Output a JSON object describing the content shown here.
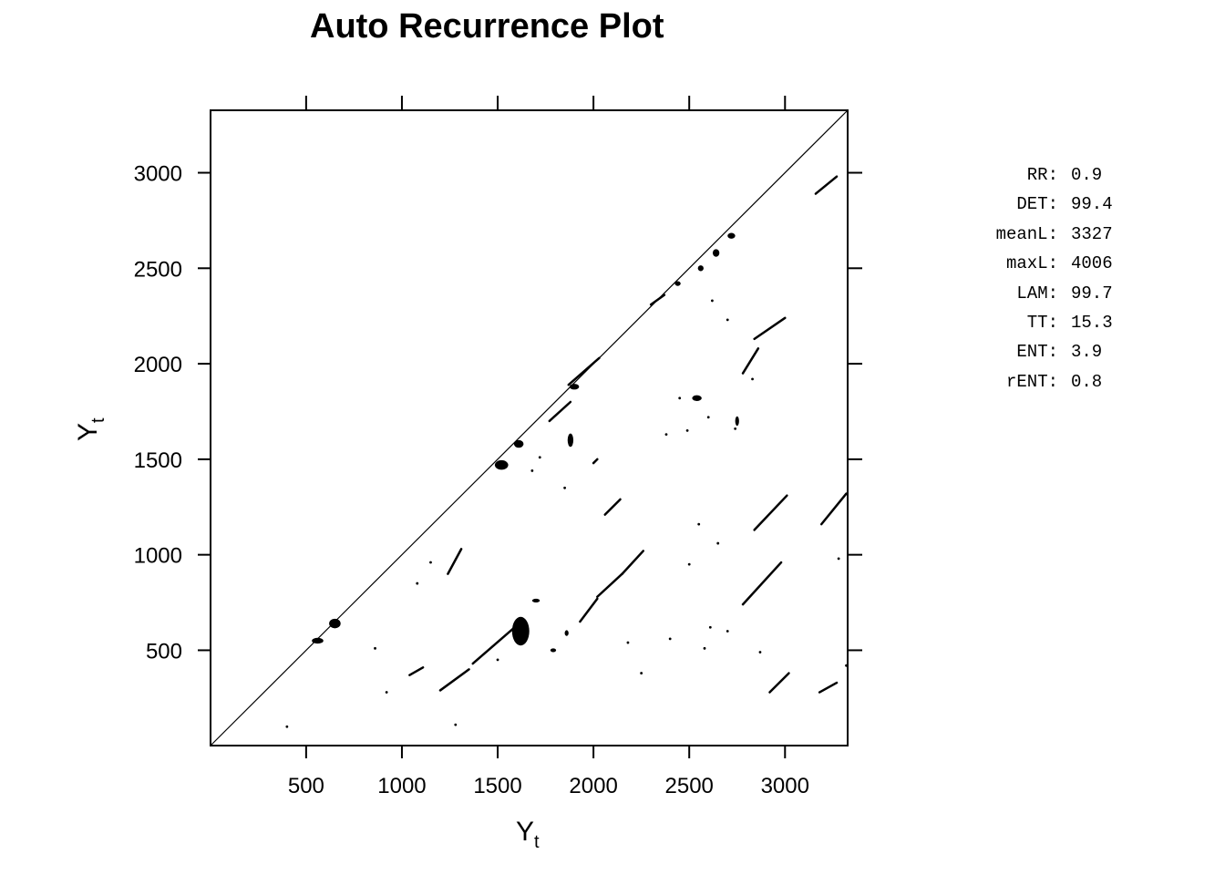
{
  "chart_data": {
    "type": "scatter",
    "title": "Auto Recurrence Plot",
    "xlabel": "Y",
    "xlabel_sub": "t",
    "ylabel": "Y",
    "ylabel_sub": "t",
    "xlim": [
      1,
      3327
    ],
    "ylim": [
      1,
      3327
    ],
    "x_ticks": [
      500,
      1000,
      1500,
      2000,
      2500,
      3000
    ],
    "y_ticks": [
      500,
      1000,
      1500,
      2000,
      2500,
      3000
    ],
    "grid": false,
    "diagonal": {
      "from": [
        1,
        1
      ],
      "to": [
        3327,
        3327
      ]
    },
    "blobs": [
      {
        "x": 560,
        "y": 550,
        "w": 60,
        "h": 30
      },
      {
        "x": 650,
        "y": 640,
        "w": 60,
        "h": 50
      },
      {
        "x": 1520,
        "y": 1470,
        "w": 70,
        "h": 50
      },
      {
        "x": 1610,
        "y": 1580,
        "w": 50,
        "h": 40
      },
      {
        "x": 1900,
        "y": 1880,
        "w": 50,
        "h": 30
      },
      {
        "x": 2440,
        "y": 2420,
        "w": 30,
        "h": 25
      },
      {
        "x": 2560,
        "y": 2500,
        "w": 30,
        "h": 30
      },
      {
        "x": 2640,
        "y": 2580,
        "w": 35,
        "h": 40
      },
      {
        "x": 2720,
        "y": 2670,
        "w": 40,
        "h": 30
      },
      {
        "x": 1620,
        "y": 600,
        "w": 90,
        "h": 150
      },
      {
        "x": 1700,
        "y": 760,
        "w": 40,
        "h": 20
      },
      {
        "x": 1880,
        "y": 1600,
        "w": 30,
        "h": 70
      },
      {
        "x": 2540,
        "y": 1820,
        "w": 50,
        "h": 30
      },
      {
        "x": 2750,
        "y": 1700,
        "w": 20,
        "h": 50
      },
      {
        "x": 1790,
        "y": 500,
        "w": 30,
        "h": 20
      },
      {
        "x": 1860,
        "y": 590,
        "w": 20,
        "h": 30
      }
    ],
    "segments": [
      {
        "x0": 1370,
        "y0": 430,
        "x1": 1600,
        "y1": 630
      },
      {
        "x0": 1200,
        "y0": 290,
        "x1": 1350,
        "y1": 400
      },
      {
        "x0": 1930,
        "y0": 650,
        "x1": 2020,
        "y1": 770
      },
      {
        "x0": 2020,
        "y0": 780,
        "x1": 2150,
        "y1": 900
      },
      {
        "x0": 2150,
        "y0": 900,
        "x1": 2260,
        "y1": 1020
      },
      {
        "x0": 1240,
        "y0": 900,
        "x1": 1310,
        "y1": 1030
      },
      {
        "x0": 2780,
        "y0": 740,
        "x1": 2980,
        "y1": 960
      },
      {
        "x0": 2840,
        "y0": 1130,
        "x1": 3010,
        "y1": 1310
      },
      {
        "x0": 3190,
        "y0": 1160,
        "x1": 3320,
        "y1": 1320
      },
      {
        "x0": 2920,
        "y0": 280,
        "x1": 3020,
        "y1": 380
      },
      {
        "x0": 3180,
        "y0": 280,
        "x1": 3270,
        "y1": 330
      },
      {
        "x0": 2780,
        "y0": 1950,
        "x1": 2860,
        "y1": 2080
      },
      {
        "x0": 2840,
        "y0": 2130,
        "x1": 3000,
        "y1": 2240
      },
      {
        "x0": 1870,
        "y0": 1890,
        "x1": 2030,
        "y1": 2030
      },
      {
        "x0": 1770,
        "y0": 1700,
        "x1": 1880,
        "y1": 1800
      },
      {
        "x0": 2300,
        "y0": 2310,
        "x1": 2370,
        "y1": 2360
      },
      {
        "x0": 3160,
        "y0": 2890,
        "x1": 3270,
        "y1": 2980
      },
      {
        "x0": 1040,
        "y0": 370,
        "x1": 1110,
        "y1": 410
      },
      {
        "x0": 2000,
        "y0": 1480,
        "x1": 2020,
        "y1": 1500
      },
      {
        "x0": 2060,
        "y0": 1210,
        "x1": 2140,
        "y1": 1290
      }
    ],
    "points": [
      [
        400,
        100
      ],
      [
        860,
        510
      ],
      [
        920,
        280
      ],
      [
        1280,
        110
      ],
      [
        1500,
        450
      ],
      [
        2250,
        380
      ],
      [
        2580,
        510
      ],
      [
        2740,
        1660
      ],
      [
        2400,
        560
      ],
      [
        2500,
        950
      ],
      [
        2620,
        2330
      ],
      [
        2700,
        2230
      ],
      [
        2830,
        1920
      ],
      [
        2650,
        1060
      ],
      [
        2550,
        1160
      ],
      [
        1680,
        1440
      ],
      [
        1720,
        1510
      ],
      [
        1850,
        1350
      ],
      [
        2380,
        1630
      ],
      [
        2450,
        1820
      ],
      [
        2490,
        1650
      ],
      [
        2600,
        1720
      ],
      [
        2610,
        620
      ],
      [
        2700,
        600
      ],
      [
        3320,
        420
      ],
      [
        1080,
        850
      ],
      [
        1150,
        960
      ],
      [
        2180,
        540
      ],
      [
        2870,
        490
      ],
      [
        3280,
        980
      ]
    ]
  },
  "stats": [
    {
      "key": "RR:",
      "value": "0.9"
    },
    {
      "key": "DET:",
      "value": "99.4"
    },
    {
      "key": "meanL:",
      "value": "3327"
    },
    {
      "key": "maxL:",
      "value": "4006"
    },
    {
      "key": "LAM:",
      "value": "99.7"
    },
    {
      "key": "TT:",
      "value": "15.3"
    },
    {
      "key": "ENT:",
      "value": "3.9"
    },
    {
      "key": "rENT:",
      "value": "0.8"
    }
  ]
}
